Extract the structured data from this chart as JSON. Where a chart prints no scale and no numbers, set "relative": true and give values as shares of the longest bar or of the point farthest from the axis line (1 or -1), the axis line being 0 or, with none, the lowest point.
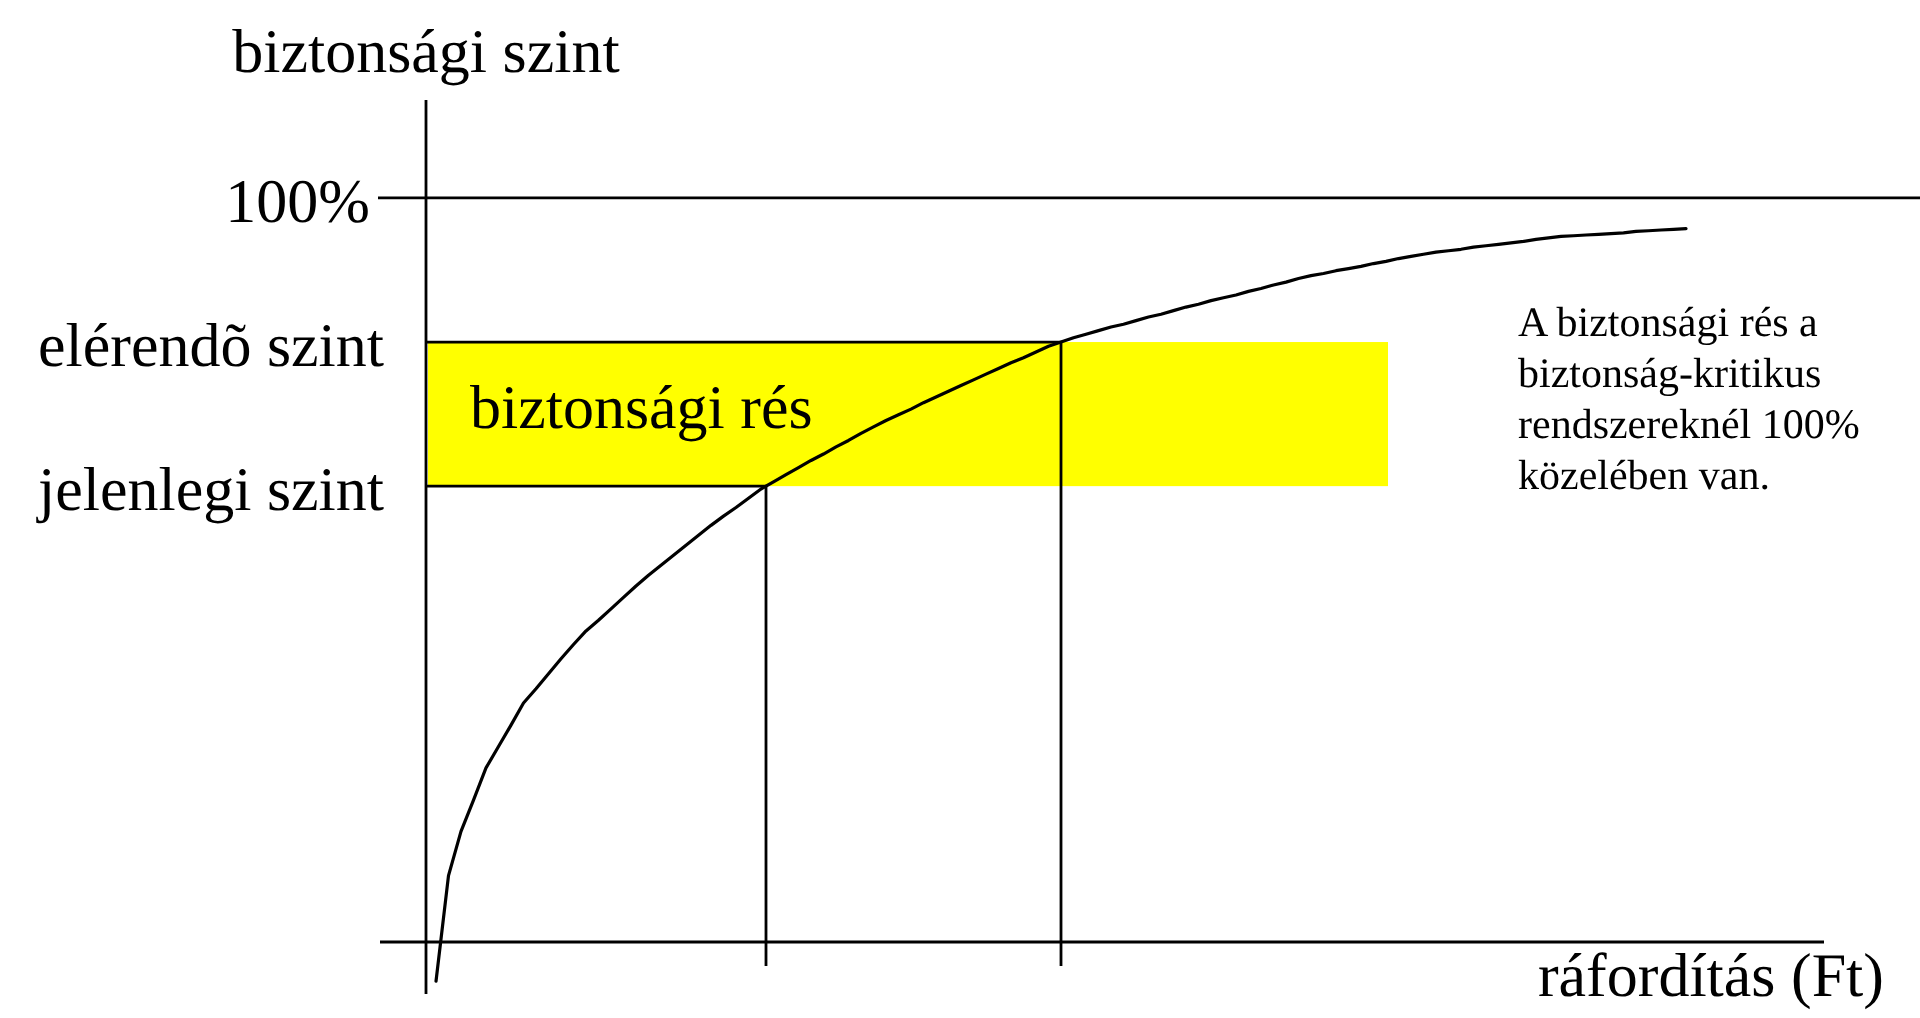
{
  "chart_data": {
    "type": "line",
    "relative": true,
    "ylabel": "biztonsági szint",
    "xlabel": "ráfordítás (Ft)",
    "categories": [
      null,
      null,
      null,
      null,
      null,
      null,
      null,
      null,
      null,
      null,
      null,
      null,
      null,
      null,
      null,
      null,
      null,
      null,
      null,
      null,
      null,
      null,
      null,
      null,
      null,
      null,
      null,
      null,
      null,
      null,
      null,
      null,
      null,
      null,
      null,
      null,
      null,
      null,
      null,
      null,
      null,
      null,
      null,
      null,
      null,
      null,
      null,
      null,
      null,
      null,
      null,
      null,
      null,
      null,
      null,
      null,
      null,
      null,
      null,
      null,
      null,
      null,
      null,
      null,
      null,
      null,
      null,
      null,
      null,
      null,
      null,
      null,
      null,
      null,
      null,
      null,
      null,
      null,
      null,
      null,
      null,
      null,
      null,
      null,
      null,
      null,
      null,
      null,
      null,
      null,
      null,
      null,
      null,
      null,
      null,
      null,
      null,
      null,
      null,
      null,
      null
    ],
    "series": [
      {
        "color": "#000000",
        "values": [
          -0.055,
          0.093,
          0.155,
          0.199,
          0.244,
          0.274,
          0.304,
          0.335,
          0.355,
          0.376,
          0.397,
          0.417,
          0.436,
          0.451,
          0.467,
          0.483,
          0.499,
          0.514,
          0.528,
          0.542,
          0.556,
          0.57,
          0.584,
          0.597,
          0.609,
          0.622,
          0.635,
          0.645,
          0.655,
          0.665,
          0.675,
          0.684,
          0.694,
          0.703,
          0.713,
          0.722,
          0.731,
          0.739,
          0.747,
          0.756,
          0.764,
          0.772,
          0.78,
          0.788,
          0.796,
          0.804,
          0.812,
          0.819,
          0.827,
          0.835,
          0.841,
          0.847,
          0.852,
          0.857,
          0.862,
          0.866,
          0.871,
          0.876,
          0.88,
          0.885,
          0.89,
          0.894,
          0.899,
          0.903,
          0.907,
          0.912,
          0.916,
          0.921,
          0.925,
          0.93,
          0.934,
          0.937,
          0.941,
          0.944,
          0.947,
          0.951,
          0.954,
          0.958,
          0.961,
          0.964,
          0.967,
          0.969,
          0.971,
          0.974,
          0.976,
          0.978,
          0.98,
          0.982,
          0.985,
          0.987,
          0.989,
          0.99,
          0.991,
          0.992,
          0.993,
          0.994,
          0.996,
          0.997,
          0.998,
          0.999,
          1
        ]
      }
    ],
    "ref_lines": [
      {
        "axis": "y",
        "value": 1.043
      },
      {
        "axis": "y",
        "value": 0.841,
        "label": "elérendõ szint"
      },
      {
        "axis": "y",
        "value": 0.639,
        "label": "jelenlegi szint"
      }
    ],
    "bands": [
      {
        "axis": "y",
        "from": 0.639,
        "to": 0.841,
        "label": "biztonsági rés",
        "color": "#ffff00"
      }
    ],
    "annotations": [
      "100%",
      "A biztonsági rés a\nbiztonság-kritikus\nrendszereknél 100%\nközelében van."
    ]
  }
}
